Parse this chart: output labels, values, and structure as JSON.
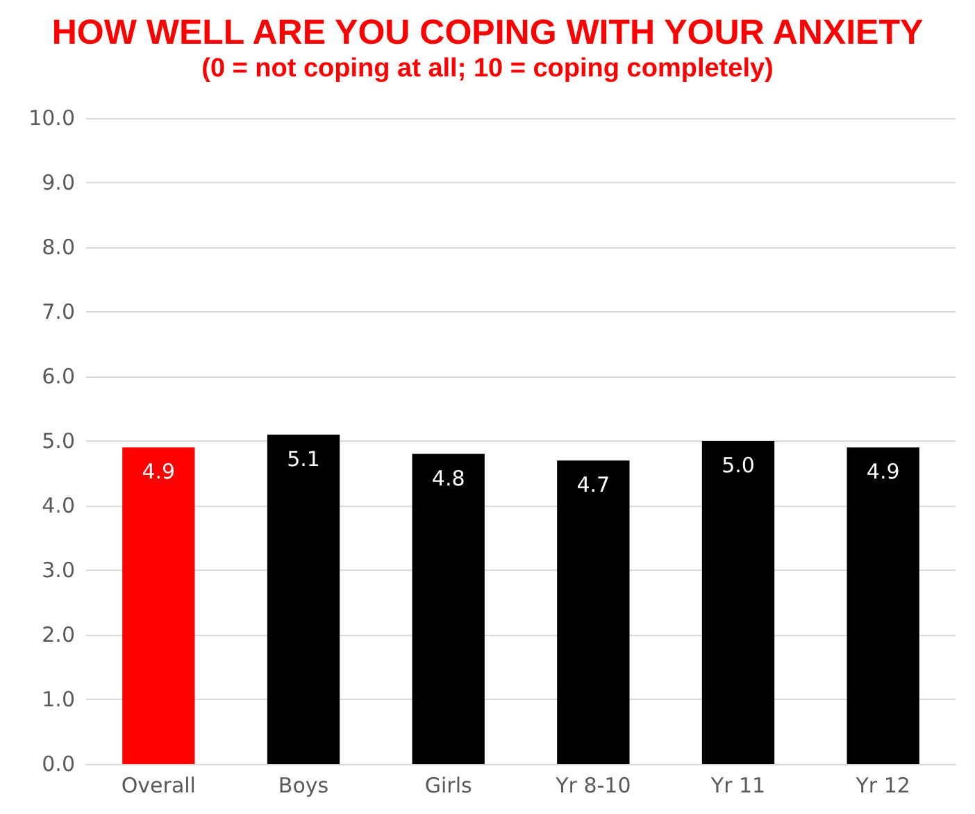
{
  "chart_data": {
    "type": "bar",
    "title": "HOW WELL ARE YOU COPING WITH YOUR ANXIETY",
    "subtitle": "(0 = not coping at all; 10 = coping completely)",
    "categories": [
      "Overall",
      "Boys",
      "Girls",
      "Yr 8-10",
      "Yr 11",
      "Yr 12"
    ],
    "values": [
      4.9,
      5.1,
      4.8,
      4.7,
      5.0,
      4.9
    ],
    "colors": [
      "#ff0000",
      "#000000",
      "#000000",
      "#000000",
      "#000000",
      "#000000"
    ],
    "value_labels": [
      "4.9",
      "5.1",
      "4.8",
      "4.7",
      "5.0",
      "4.9"
    ],
    "ylim": [
      0,
      10
    ],
    "yticks": [
      {
        "value": 0,
        "label": "0.0"
      },
      {
        "value": 1,
        "label": "1.0"
      },
      {
        "value": 2,
        "label": "2.0"
      },
      {
        "value": 3,
        "label": "3.0"
      },
      {
        "value": 4,
        "label": "4.0"
      },
      {
        "value": 5,
        "label": "5.0"
      },
      {
        "value": 6,
        "label": "6.0"
      },
      {
        "value": 7,
        "label": "7.0"
      },
      {
        "value": 8,
        "label": "8.0"
      },
      {
        "value": 9,
        "label": "9.0"
      },
      {
        "value": 10,
        "label": "10.0"
      }
    ],
    "grid": "y"
  }
}
